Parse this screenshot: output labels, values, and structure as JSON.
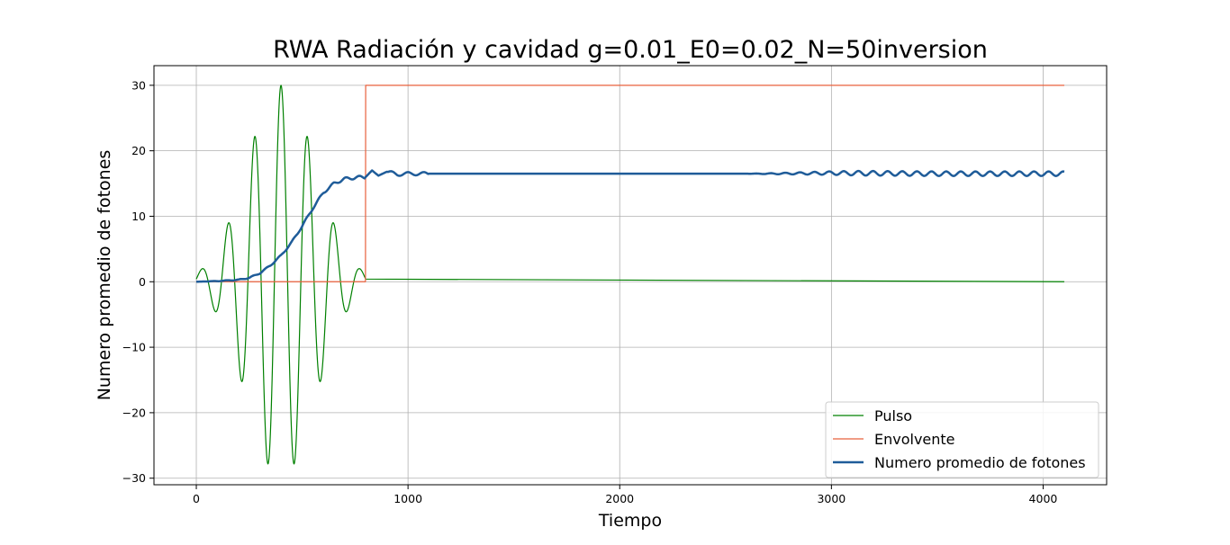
{
  "chart_data": {
    "type": "line",
    "title": "RWA Radiación y cavidad g=0.01_E0=0.02_N=50inversion",
    "xlabel": "Tiempo",
    "ylabel": "Numero promedio de fotones",
    "xlim": [
      -200,
      4300
    ],
    "ylim": [
      -31,
      33
    ],
    "xticks": [
      0,
      1000,
      2000,
      3000,
      4000
    ],
    "yticks": [
      -30,
      -20,
      -10,
      0,
      10,
      20,
      30
    ],
    "grid": true,
    "legend_position": "lower-right",
    "series": [
      {
        "name": "Pulso",
        "color": "#008000",
        "linewidth": 1.2,
        "description_model": "gaussian-enveloped cosine",
        "params": {
          "amplitude": 30,
          "center": 400,
          "sigma": 160,
          "period": 125,
          "t_start": 0,
          "t_pulse_end": 800,
          "t_end": 4100
        }
      },
      {
        "name": "Envolvente",
        "color": "#e8603c",
        "linewidth": 1.2,
        "x": [
          0,
          799,
          800,
          4100
        ],
        "y": [
          0,
          0,
          30,
          30
        ]
      },
      {
        "name": "Numero promedio de fotones",
        "color": "#1f5c99",
        "linewidth": 2.5,
        "x": [
          0,
          100,
          150,
          200,
          250,
          300,
          350,
          400,
          450,
          500,
          550,
          600,
          650,
          700,
          750,
          800,
          830,
          860,
          900,
          950,
          1000,
          1500,
          2000,
          2500,
          2700,
          3000,
          3500,
          4100
        ],
        "y": [
          0,
          0.1,
          0.2,
          0.3,
          0.6,
          1.3,
          2.5,
          4.0,
          6.0,
          8.5,
          11.2,
          13.6,
          15.0,
          15.7,
          15.9,
          16.0,
          17.0,
          16.2,
          16.8,
          16.4,
          16.5,
          16.5,
          16.5,
          16.5,
          16.5,
          16.6,
          16.5,
          16.5
        ]
      }
    ]
  }
}
